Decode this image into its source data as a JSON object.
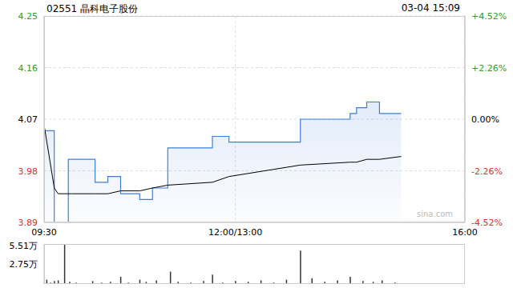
{
  "chart_data": [
    {
      "type": "line",
      "title": "02551 晶科电子股份",
      "subtitle": "03-04 15:09",
      "annotations": [
        "sina.com"
      ],
      "x": [
        0,
        8,
        11,
        19,
        21,
        40,
        50,
        60,
        75,
        85,
        97,
        132,
        145,
        201,
        240,
        245,
        253,
        263,
        280
      ],
      "xlim": [
        0,
        330
      ],
      "xticks": [
        {
          "value": 0,
          "label": "09:30"
        },
        {
          "value": 150,
          "label": "12:00/13:00"
        },
        {
          "value": 330,
          "label": "16:00"
        }
      ],
      "series": [
        {
          "type": "area",
          "line_style": "step",
          "color": "#3d7fd9",
          "values": [
            4.05,
            3.89,
            3.89,
            4.0,
            4.0,
            3.96,
            3.97,
            3.94,
            3.93,
            3.95,
            4.02,
            4.04,
            4.03,
            4.07,
            4.08,
            4.09,
            4.1,
            4.08,
            4.08
          ]
        },
        {
          "type": "line",
          "color": "#000000",
          "values": [
            4.06,
            3.95,
            3.94,
            3.94,
            3.94,
            3.94,
            3.94,
            3.945,
            3.945,
            3.95,
            3.955,
            3.96,
            3.97,
            3.99,
            3.995,
            3.995,
            4.0,
            4.0,
            4.005
          ]
        }
      ],
      "ylim": [
        3.89,
        4.25
      ],
      "yticks": [
        3.89,
        3.98,
        4.07,
        4.16,
        4.25
      ],
      "y2lim": [
        -4.52,
        4.52
      ],
      "y2ticks": [
        {
          "value": -4.52,
          "label": "-4.52%"
        },
        {
          "value": -2.26,
          "label": "-2.26%"
        },
        {
          "value": 0,
          "label": "0.00%"
        },
        {
          "value": 2.26,
          "label": "+2.26%"
        },
        {
          "value": 4.52,
          "label": "+4.52%"
        }
      ],
      "grid": true
    },
    {
      "type": "bar",
      "x": [
        0,
        2,
        5,
        8,
        11,
        16,
        20,
        25,
        30,
        38,
        45,
        52,
        60,
        66,
        75,
        80,
        88,
        99,
        105,
        115,
        125,
        132,
        140,
        150,
        160,
        170,
        180,
        190,
        201,
        210,
        220,
        230,
        240,
        250,
        258,
        265,
        275
      ],
      "values": [
        0.3,
        0.6,
        0.2,
        0.4,
        0.5,
        5.51,
        0.3,
        0.2,
        0.1,
        0.4,
        0.2,
        0.3,
        1.0,
        0.2,
        0.6,
        0.3,
        0.5,
        1.7,
        0.3,
        0.2,
        0.4,
        1.3,
        0.2,
        0.4,
        0.3,
        0.5,
        0.2,
        0.6,
        4.6,
        0.8,
        0.3,
        0.5,
        1.0,
        0.4,
        0.3,
        0.5,
        0.2
      ],
      "color": "#333333",
      "xlim": [
        0,
        330
      ],
      "ylim": [
        0,
        5.51
      ],
      "yticks": [
        0,
        {
          "value": 2.75,
          "label": "2.75万"
        },
        {
          "value": 5.51,
          "label": "5.51万"
        }
      ],
      "tick_labels": "y"
    }
  ]
}
